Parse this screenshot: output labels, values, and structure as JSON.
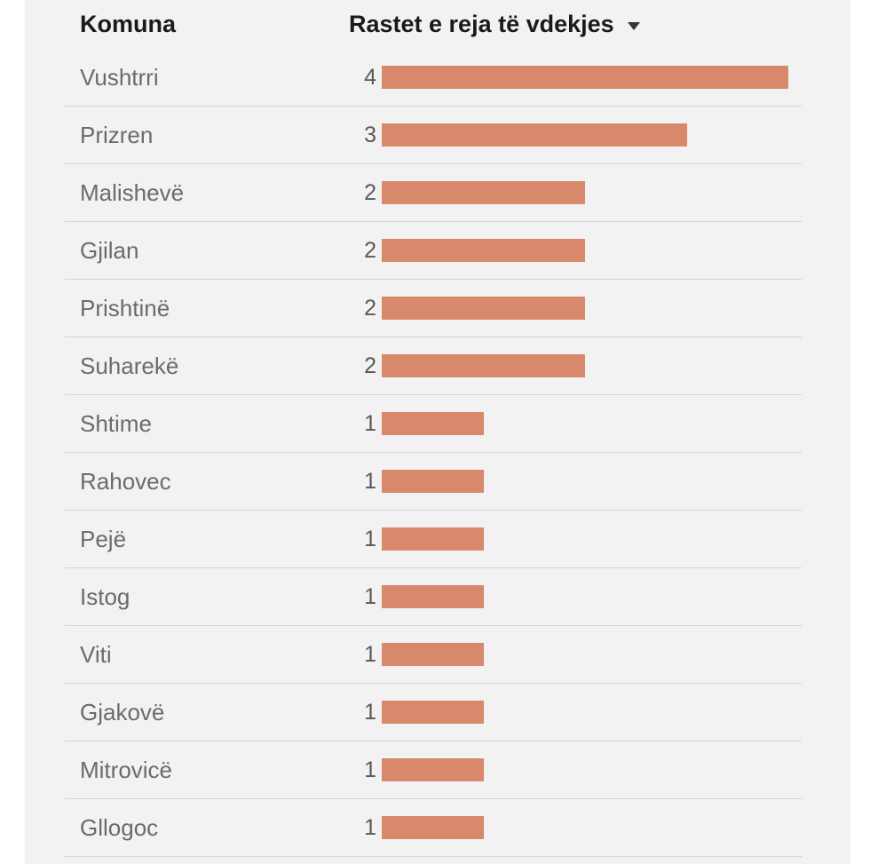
{
  "table": {
    "columns": [
      {
        "label": "Komuna"
      },
      {
        "label": "Rastet e reja të vdekjes",
        "sort_icon": "caret-down",
        "sorted": "desc"
      }
    ],
    "rows": [
      {
        "komuna": "Vushtrri",
        "value": 4
      },
      {
        "komuna": "Prizren",
        "value": 3
      },
      {
        "komuna": "Malishevë",
        "value": 2
      },
      {
        "komuna": "Gjilan",
        "value": 2
      },
      {
        "komuna": "Prishtinë",
        "value": 2
      },
      {
        "komuna": "Suharekë",
        "value": 2
      },
      {
        "komuna": "Shtime",
        "value": 1
      },
      {
        "komuna": "Rahovec",
        "value": 1
      },
      {
        "komuna": "Pejë",
        "value": 1
      },
      {
        "komuna": "Istog",
        "value": 1
      },
      {
        "komuna": "Viti",
        "value": 1
      },
      {
        "komuna": "Gjakovë",
        "value": 1
      },
      {
        "komuna": "Mitrovicë",
        "value": 1
      },
      {
        "komuna": "Gllogoc",
        "value": 1
      }
    ]
  },
  "chart_data": {
    "type": "bar",
    "orientation": "horizontal",
    "title": "",
    "xlabel": "Rastet e reja të vdekjes",
    "ylabel": "Komuna",
    "categories": [
      "Vushtrri",
      "Prizren",
      "Malishevë",
      "Gjilan",
      "Prishtinë",
      "Suharekë",
      "Shtime",
      "Rahovec",
      "Pejë",
      "Istog",
      "Viti",
      "Gjakovë",
      "Mitrovicë",
      "Gllogoc"
    ],
    "values": [
      4,
      3,
      2,
      2,
      2,
      2,
      1,
      1,
      1,
      1,
      1,
      1,
      1,
      1
    ],
    "xlim": [
      0,
      4
    ],
    "grid": false,
    "legend": "none",
    "data_labels": true,
    "bar_color": "#d8896b",
    "sort": "descending"
  },
  "colors": {
    "page_background": "#ffffff",
    "panel_background": "#f2f2f2",
    "bar": "#d8896b",
    "divider": "#d4d4d5",
    "header_text": "#1a1a1a",
    "label_text": "#6b6b6b",
    "value_text": "#595959"
  }
}
